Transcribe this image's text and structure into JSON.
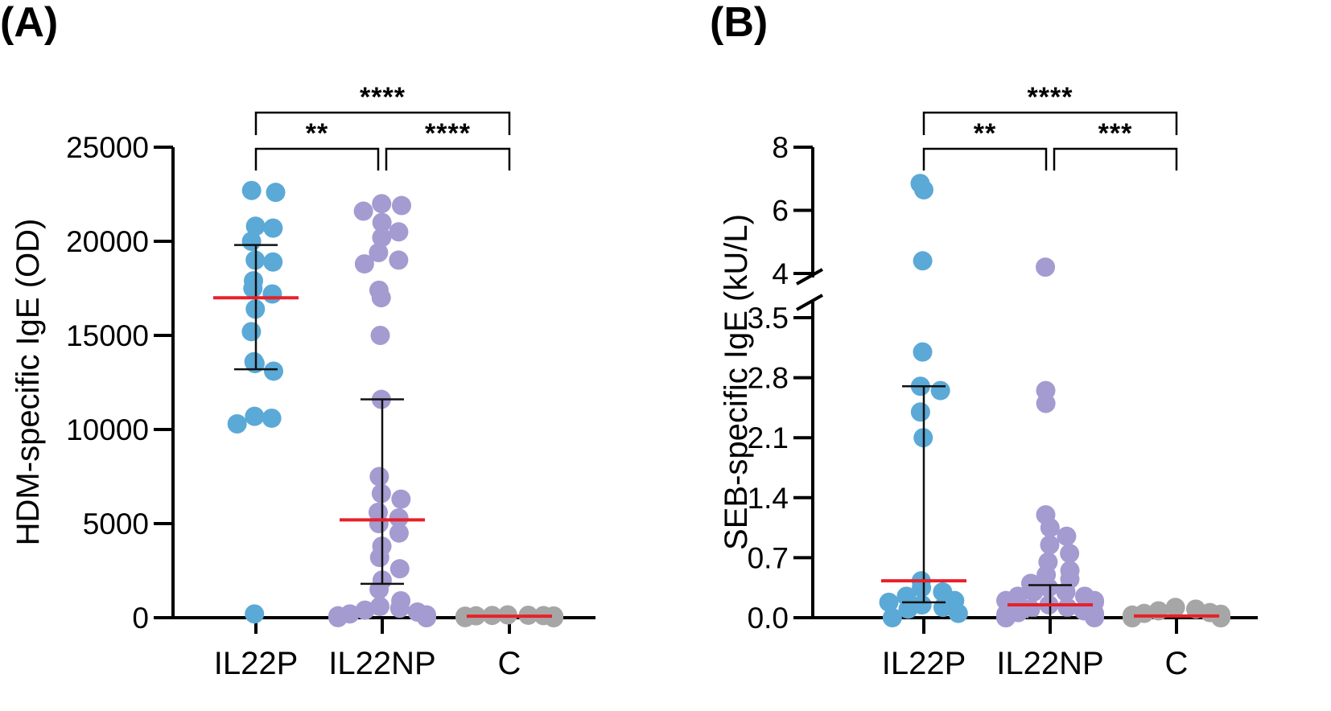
{
  "chart_data": [
    {
      "type": "scatter",
      "panel_label": "(A)",
      "ylabel": "HDM-specific IgE (OD)",
      "categories": [
        "IL22P",
        "IL22NP",
        "C"
      ],
      "ylim": [
        0,
        25000
      ],
      "yticks": [
        0,
        5000,
        10000,
        15000,
        20000,
        25000
      ],
      "ytick_labels": [
        "0",
        "5000",
        "10000",
        "15000",
        "20000",
        "25000"
      ],
      "colors": [
        "#5ba9d6",
        "#a49bd1",
        "#a6a6a6"
      ],
      "median_color": "#e8202a",
      "series": [
        {
          "name": "IL22P",
          "median": 17000,
          "q1": 13200,
          "q3": 19800,
          "values": [
            22700,
            22600,
            20800,
            20700,
            20000,
            19000,
            18900,
            17900,
            17500,
            17200,
            16400,
            15200,
            13600,
            13500,
            13100,
            10700,
            10600,
            10300,
            200
          ]
        },
        {
          "name": "IL22NP",
          "median": 5200,
          "q1": 1800,
          "q3": 11600,
          "values": [
            22000,
            21900,
            21600,
            21000,
            20500,
            20200,
            19400,
            19000,
            18800,
            17400,
            17000,
            15000,
            11600,
            7500,
            6600,
            6300,
            5600,
            5300,
            5000,
            4500,
            3800,
            3200,
            2600,
            2000,
            1500,
            900,
            600,
            500,
            400,
            300,
            200,
            150,
            100,
            80,
            60,
            50,
            40,
            30,
            20,
            10,
            5,
            0
          ]
        },
        {
          "name": "C",
          "median": 80,
          "q1": 40,
          "q3": 120,
          "values": [
            150,
            130,
            120,
            110,
            100,
            90,
            80,
            70,
            60,
            50,
            40,
            30,
            20,
            10,
            5,
            0
          ]
        }
      ],
      "comparisons": [
        {
          "from": 0,
          "to": 1,
          "label": "**",
          "level": 0
        },
        {
          "from": 1,
          "to": 2,
          "label": "****",
          "level": 0
        },
        {
          "from": 0,
          "to": 2,
          "label": "****",
          "level": 1
        }
      ]
    },
    {
      "type": "scatter",
      "panel_label": "(B)",
      "ylabel": "SEB-specific IgE (kU/L)",
      "categories": [
        "IL22P",
        "IL22NP",
        "C"
      ],
      "ylim": [
        0,
        8
      ],
      "axis_break": [
        3.5,
        4
      ],
      "yticks": [
        0,
        0.7,
        1.4,
        2.1,
        2.8,
        3.5,
        4,
        6,
        8
      ],
      "ytick_labels": [
        "0.0",
        "0.7",
        "1.4",
        "2.1",
        "2.8",
        "3.5",
        "4",
        "6",
        "8"
      ],
      "colors": [
        "#5ba9d6",
        "#a49bd1",
        "#a6a6a6"
      ],
      "median_color": "#e8202a",
      "series": [
        {
          "name": "IL22P",
          "median": 0.43,
          "q1": 0.18,
          "q3": 2.7,
          "values": [
            6.85,
            6.65,
            4.4,
            3.1,
            2.7,
            2.65,
            2.4,
            2.1,
            0.43,
            0.35,
            0.3,
            0.25,
            0.2,
            0.18,
            0.15,
            0.12,
            0.1,
            0.05,
            0.0
          ]
        },
        {
          "name": "IL22NP",
          "median": 0.15,
          "q1": 0.0,
          "q3": 0.38,
          "values": [
            4.2,
            2.65,
            2.5,
            1.2,
            1.05,
            0.95,
            0.85,
            0.75,
            0.65,
            0.55,
            0.5,
            0.45,
            0.4,
            0.35,
            0.3,
            0.3,
            0.25,
            0.25,
            0.2,
            0.2,
            0.18,
            0.15,
            0.12,
            0.1,
            0.08,
            0.06,
            0.05,
            0.04,
            0.03,
            0.02,
            0.01,
            0.0,
            0.0,
            0.0
          ]
        },
        {
          "name": "C",
          "median": 0.02,
          "q1": 0.0,
          "q3": 0.05,
          "values": [
            0.12,
            0.1,
            0.08,
            0.06,
            0.05,
            0.04,
            0.03,
            0.02,
            0.01,
            0.0,
            0.0,
            0.0,
            0.0
          ]
        }
      ],
      "comparisons": [
        {
          "from": 0,
          "to": 1,
          "label": "**",
          "level": 0
        },
        {
          "from": 1,
          "to": 2,
          "label": "***",
          "level": 0
        },
        {
          "from": 0,
          "to": 2,
          "label": "****",
          "level": 1
        }
      ]
    }
  ]
}
